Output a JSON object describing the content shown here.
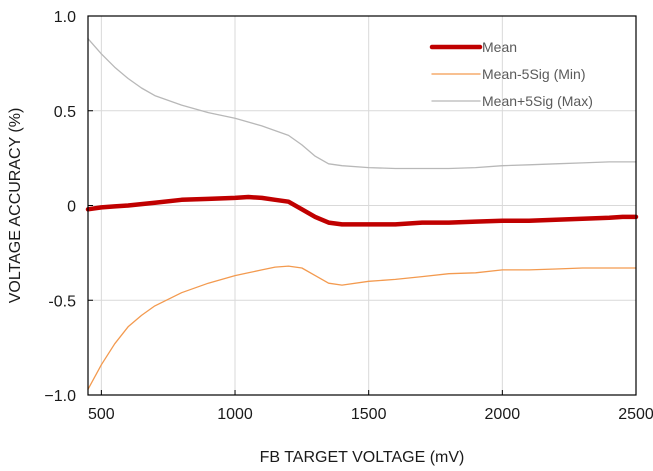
{
  "chart_data": {
    "type": "line",
    "title": "",
    "xlabel": "FB TARGET VOLTAGE (mV)",
    "ylabel": "VOLTAGE ACCURACY (%)",
    "xlim": [
      450,
      2500
    ],
    "ylim": [
      -1.0,
      1.0
    ],
    "grid": true,
    "legend_position": "top-right",
    "x_ticks": [
      {
        "value": 500,
        "label": "500"
      },
      {
        "value": 1000,
        "label": "1000"
      },
      {
        "value": 1500,
        "label": "1500"
      },
      {
        "value": 2000,
        "label": "2000"
      },
      {
        "value": 2500,
        "label": "2500"
      }
    ],
    "y_ticks": [
      {
        "value": 1.0,
        "label": "1.0"
      },
      {
        "value": 0.5,
        "label": "0.5"
      },
      {
        "value": 0,
        "label": "0"
      },
      {
        "value": -0.5,
        "label": "-0.5"
      },
      {
        "value": -1.0,
        "label": "−1.0"
      }
    ],
    "series": [
      {
        "name": "Mean",
        "color": "#c00000",
        "x": [
          450,
          500,
          550,
          600,
          700,
          800,
          900,
          1000,
          1050,
          1100,
          1150,
          1200,
          1250,
          1300,
          1350,
          1400,
          1500,
          1600,
          1700,
          1800,
          1900,
          2000,
          2100,
          2200,
          2300,
          2400,
          2450,
          2500
        ],
        "y": [
          -0.02,
          -0.01,
          -0.005,
          0.0,
          0.015,
          0.03,
          0.035,
          0.04,
          0.045,
          0.04,
          0.03,
          0.02,
          -0.02,
          -0.06,
          -0.09,
          -0.1,
          -0.1,
          -0.1,
          -0.09,
          -0.09,
          -0.085,
          -0.08,
          -0.08,
          -0.075,
          -0.07,
          -0.065,
          -0.06,
          -0.06
        ]
      },
      {
        "name": "Mean-5Sig (Min)",
        "color": "#f39a4f",
        "x": [
          450,
          500,
          550,
          600,
          650,
          700,
          800,
          900,
          1000,
          1050,
          1100,
          1150,
          1200,
          1250,
          1300,
          1350,
          1400,
          1500,
          1600,
          1700,
          1800,
          1900,
          2000,
          2100,
          2200,
          2300,
          2400,
          2500
        ],
        "y": [
          -0.97,
          -0.84,
          -0.73,
          -0.64,
          -0.58,
          -0.53,
          -0.46,
          -0.41,
          -0.37,
          -0.355,
          -0.34,
          -0.325,
          -0.32,
          -0.33,
          -0.37,
          -0.41,
          -0.42,
          -0.4,
          -0.39,
          -0.375,
          -0.36,
          -0.355,
          -0.34,
          -0.34,
          -0.335,
          -0.33,
          -0.33,
          -0.33
        ]
      },
      {
        "name": "Mean+5Sig (Max)",
        "color": "#b8b8b8",
        "x": [
          450,
          500,
          550,
          600,
          650,
          700,
          800,
          900,
          1000,
          1100,
          1200,
          1250,
          1300,
          1350,
          1400,
          1500,
          1600,
          1700,
          1800,
          1900,
          2000,
          2100,
          2200,
          2300,
          2400,
          2500
        ],
        "y": [
          0.88,
          0.8,
          0.73,
          0.67,
          0.62,
          0.58,
          0.53,
          0.49,
          0.46,
          0.42,
          0.37,
          0.32,
          0.26,
          0.22,
          0.21,
          0.2,
          0.195,
          0.195,
          0.195,
          0.2,
          0.21,
          0.215,
          0.22,
          0.225,
          0.23,
          0.23
        ]
      }
    ]
  }
}
